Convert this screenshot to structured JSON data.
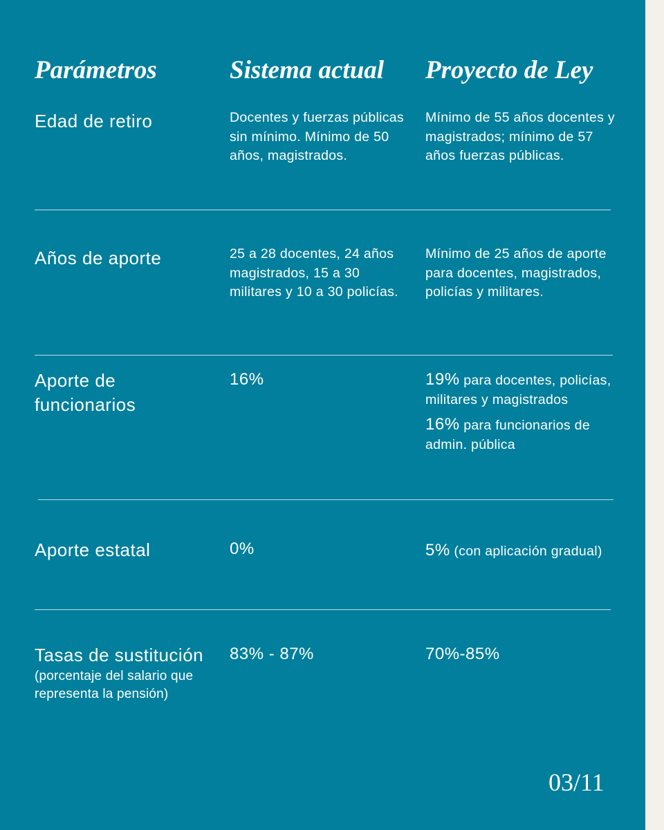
{
  "table": {
    "header": [
      "Parámetros",
      "Sistema actual",
      "Proyecto de Ley"
    ],
    "rows": [
      {
        "label": "Edad de retiro",
        "current": "Docentes y fuerzas públicas sin mínimo. Mínimo de 50 años, magistrados.",
        "proposal": "Mínimo de 55 años docentes y magistrados; mínimo de 57 años fuerzas públicas."
      },
      {
        "label": "Años de aporte",
        "current": "25 a 28 docentes, 24 años magistrados, 15 a 30 militares y 10 a 30 policías.",
        "proposal": "Mínimo de 25 años de aporte para docentes, magistrados, policías y militares."
      },
      {
        "label": "Aporte de funcionarios",
        "current": "16%",
        "proposal": [
          {
            "lead": "19%",
            "rest": "para docentes, policías, militares y magistrados"
          },
          {
            "lead": "16%",
            "rest": "para funcionarios de admin. pública"
          }
        ]
      },
      {
        "label": "Aporte estatal",
        "current": "0%",
        "proposal": [
          {
            "lead": "5%",
            "rest": "(con aplicación gradual)"
          }
        ]
      },
      {
        "label": "Tasas de sustitución",
        "note": "(porcentaje del salario que representa la pensión)",
        "current": "83% - 87%",
        "proposal": "70%-85%"
      }
    ]
  },
  "footer": {
    "page": "03/11"
  }
}
